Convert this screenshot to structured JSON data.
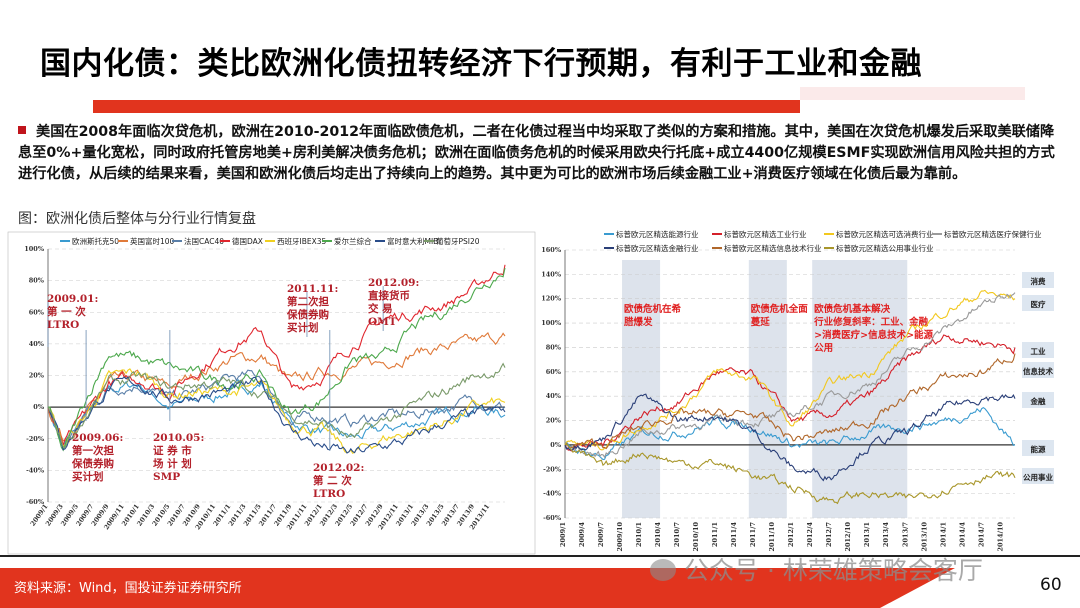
{
  "title": "国内化债：类比欧洲化债扭转经济下行预期，有利于工业和金融",
  "bullet_text": "美国在2008年面临次贷危机，欧洲在2010-2012年面临欧债危机，二者在化债过程当中均采取了类似的方案和措施。其中，美国在次贷危机爆发后采取美联储降息至0%+量化宽松，同时政府托管房地美+房利美解决债务危机；欧洲在面临债务危机的时候采用欧央行托底+成立4400亿规模ESMF实现欧洲信用风险共担的方式进行化债，从后续的结果来看，美国和欧洲化债后均走出了持续向上的趋势。其中更为可比的欧洲市场后续金融工业+消费医疗领域在化债后最为靠前。",
  "caption": "图：欧洲化债后整体与分行业行情复盘",
  "source": "资料来源：Wind，国投证券证券研究所",
  "page_number": "60",
  "watermark": "公众号 · 林荣雄策略会客厅",
  "colors": {
    "accent_red": "#e1341e",
    "bullet_red": "#c0141c"
  },
  "chart_data": [
    {
      "type": "line",
      "ylim": [
        -60,
        100
      ],
      "y_ticks": [
        "100%",
        "80%",
        "60%",
        "40%",
        "20%",
        "0%",
        "-20%",
        "-40%",
        "-60%"
      ],
      "x_ticks": [
        "2009/1",
        "2009/3",
        "2009/5",
        "2009/7",
        "2009/9",
        "2009/11",
        "2010/1",
        "2010/3",
        "2010/5",
        "2010/7",
        "2010/9",
        "2010/11",
        "2011/1",
        "2011/3",
        "2011/5",
        "2011/7",
        "2011/9",
        "2011/11",
        "2012/1",
        "2012/3",
        "2012/5",
        "2012/7",
        "2012/9",
        "2012/11",
        "2013/1",
        "2013/3",
        "2013/5",
        "2013/7",
        "2013/9",
        "2013/11"
      ],
      "x": [
        "2009/1",
        "2009/3",
        "2009/6",
        "2009/9",
        "2010/1",
        "2010/5",
        "2010/9",
        "2011/1",
        "2011/5",
        "2011/9",
        "2012/1",
        "2012/5",
        "2012/9",
        "2013/1",
        "2013/5",
        "2013/9",
        "2014/1"
      ],
      "series": [
        {
          "name": "欧洲斯托克50",
          "color": "#3a9bd0",
          "values": [
            0,
            -25,
            -5,
            10,
            15,
            0,
            5,
            10,
            15,
            -10,
            -15,
            -20,
            -15,
            -10,
            -5,
            0,
            -5
          ]
        },
        {
          "name": "英国富时100",
          "color": "#e07a3a",
          "values": [
            0,
            -20,
            -5,
            15,
            18,
            12,
            22,
            30,
            32,
            15,
            22,
            25,
            28,
            35,
            38,
            40,
            45
          ]
        },
        {
          "name": "法国CAC40",
          "color": "#5a7fa8",
          "values": [
            0,
            -25,
            -5,
            12,
            15,
            5,
            10,
            18,
            20,
            -10,
            -5,
            -10,
            -5,
            -5,
            0,
            5,
            0
          ]
        },
        {
          "name": "德国DAX",
          "color": "#e0262e",
          "values": [
            0,
            -25,
            -5,
            15,
            18,
            10,
            25,
            40,
            48,
            10,
            20,
            40,
            55,
            60,
            65,
            75,
            90
          ]
        },
        {
          "name": "西班牙IBEX35",
          "color": "#f0d020",
          "values": [
            0,
            -25,
            -5,
            18,
            22,
            8,
            10,
            10,
            12,
            -10,
            -15,
            -30,
            -20,
            -15,
            -10,
            0,
            3
          ]
        },
        {
          "name": "爱尔兰综合",
          "color": "#4ca84c",
          "values": [
            0,
            -30,
            5,
            35,
            30,
            25,
            20,
            15,
            20,
            -5,
            5,
            30,
            30,
            50,
            60,
            75,
            88
          ]
        },
        {
          "name": "富时意大利MIB",
          "color": "#2a4d8a",
          "values": [
            0,
            -25,
            -5,
            12,
            15,
            5,
            8,
            10,
            15,
            -15,
            -25,
            -30,
            -25,
            -20,
            -10,
            -5,
            -3
          ]
        },
        {
          "name": "葡萄牙PSI20",
          "color": "#7a9a6a",
          "values": [
            0,
            -25,
            -5,
            15,
            18,
            12,
            15,
            15,
            10,
            -5,
            -10,
            -20,
            -10,
            0,
            10,
            20,
            25
          ]
        }
      ],
      "annotations": [
        {
          "date": "2009.01",
          "lines": [
            "2009.01:",
            "第 一 次",
            "LTRO"
          ]
        },
        {
          "date": "2009.06",
          "lines": [
            "2009.06:",
            "第一次担",
            "保债券购",
            "买计划"
          ]
        },
        {
          "date": "2010.05",
          "lines": [
            "2010.05:",
            "证 券 市",
            "场 计 划",
            "SMP"
          ]
        },
        {
          "date": "2011.11",
          "lines": [
            "2011.11:",
            "第二次担",
            "保债券购",
            "买计划"
          ]
        },
        {
          "date": "2012.02",
          "lines": [
            "2012.02:",
            "第 二 次",
            "LTRO"
          ]
        },
        {
          "date": "2012.09",
          "lines": [
            "2012.09:",
            "直接货币",
            "交    易",
            "OMT"
          ]
        }
      ],
      "legend_position": "top"
    },
    {
      "type": "line",
      "ylim": [
        -60,
        160
      ],
      "y_ticks": [
        "160%",
        "140%",
        "120%",
        "100%",
        "80%",
        "60%",
        "40%",
        "20%",
        "0%",
        "-20%",
        "-40%",
        "-60%"
      ],
      "x_ticks": [
        "2009/1",
        "2009/4",
        "2009/7",
        "2009/10",
        "2010/1",
        "2010/4",
        "2010/7",
        "2010/10",
        "2011/1",
        "2011/4",
        "2011/7",
        "2011/10",
        "2012/1",
        "2012/4",
        "2012/7",
        "2012/10",
        "2013/1",
        "2013/4",
        "2013/7",
        "2013/10",
        "2014/1",
        "2014/4",
        "2014/7",
        "2014/10"
      ],
      "x": [
        "2009/1",
        "2009/7",
        "2010/1",
        "2010/7",
        "2011/1",
        "2011/7",
        "2012/1",
        "2012/7",
        "2013/1",
        "2013/7",
        "2014/1",
        "2014/7",
        "2014/12"
      ],
      "series": [
        {
          "name": "标普欧元区精选能源行业",
          "color": "#3a9bd0",
          "values": [
            0,
            -10,
            10,
            10,
            20,
            15,
            0,
            0,
            10,
            15,
            20,
            30,
            0
          ]
        },
        {
          "name": "标普欧元区精选工业行业",
          "color": "#d4202a",
          "values": [
            0,
            0,
            25,
            35,
            60,
            55,
            20,
            25,
            40,
            70,
            90,
            85,
            80
          ]
        },
        {
          "name": "标普欧元区精选可选消费行业",
          "color": "#f2c81e",
          "values": [
            0,
            0,
            15,
            30,
            60,
            55,
            15,
            50,
            60,
            90,
            110,
            125,
            120
          ]
        },
        {
          "name": "标普欧元区精选医疗保健行业",
          "color": "#9a9a9a",
          "values": [
            0,
            -10,
            10,
            15,
            20,
            20,
            25,
            40,
            50,
            75,
            95,
            115,
            125
          ]
        },
        {
          "name": "标普欧元区精选金融行业",
          "color": "#2a3f78",
          "values": [
            0,
            5,
            40,
            20,
            25,
            10,
            -20,
            -25,
            0,
            10,
            30,
            40,
            38
          ]
        },
        {
          "name": "标普欧元区精选信息技术行业",
          "color": "#b0672a",
          "values": [
            0,
            0,
            15,
            25,
            25,
            25,
            5,
            10,
            20,
            40,
            55,
            60,
            75
          ]
        },
        {
          "name": "标普欧元区精选公用事业行业",
          "color": "#a8962a",
          "values": [
            0,
            -20,
            -5,
            -15,
            -15,
            -25,
            -35,
            -45,
            -40,
            -45,
            -35,
            -25,
            -27
          ]
        }
      ],
      "shaded_periods": [
        {
          "from": "2009/10",
          "to": "2010/4",
          "label": [
            "欧债危机在希",
            "腊爆发"
          ]
        },
        {
          "from": "2011/6",
          "to": "2011/12",
          "label": [
            "欧债危机全面",
            "蔓延"
          ]
        },
        {
          "from": "2012/4",
          "to": "2013/7",
          "label": [
            "欧债危机基本解决",
            "行业修复斜率：工业、金融",
            ">消费医疗>信息技术>能源",
            "公用"
          ]
        }
      ],
      "end_labels": [
        "消费",
        "医疗",
        "工业",
        "信息技术",
        "金融",
        "能源",
        "公用事业"
      ],
      "legend_position": "top"
    }
  ]
}
